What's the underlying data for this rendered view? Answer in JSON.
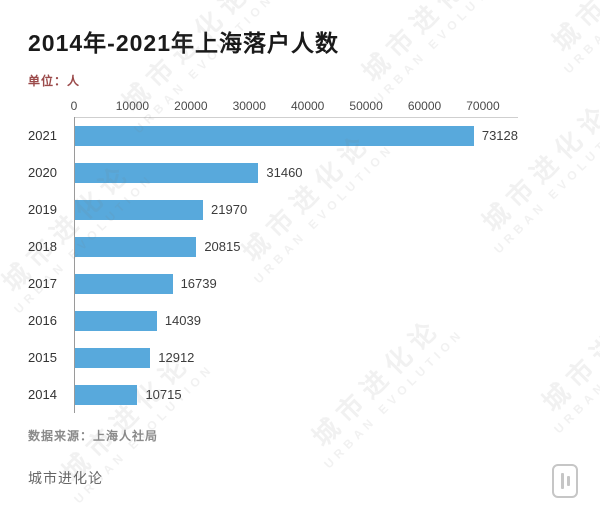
{
  "page": {
    "title": "2014年-2021年上海落户人数",
    "unit_label": "单位：人",
    "source": "数据来源：上海人社局",
    "footer_brand": "城市进化论"
  },
  "watermark": {
    "cn": "城市进化论",
    "en": "URBAN EVOLUTION"
  },
  "colors": {
    "bar": "#58a9dc",
    "title": "#1a1a1a",
    "unit": "#9b4a4a",
    "axis": "#9a9a9a"
  },
  "chart_data": {
    "type": "bar",
    "orientation": "horizontal",
    "title": "2014年-2021年上海落户人数",
    "unit": "人",
    "categories": [
      "2021",
      "2020",
      "2019",
      "2018",
      "2017",
      "2016",
      "2015",
      "2014"
    ],
    "values": [
      73128,
      31460,
      21970,
      20815,
      16739,
      14039,
      12912,
      10715
    ],
    "x_ticks": [
      0,
      10000,
      20000,
      30000,
      40000,
      50000,
      60000,
      70000
    ],
    "xlim": [
      0,
      76000
    ],
    "xlabel": "",
    "ylabel": "",
    "grid": false,
    "legend": false,
    "bar_color": "#58a9dc",
    "source": "数据来源：上海人社局"
  }
}
